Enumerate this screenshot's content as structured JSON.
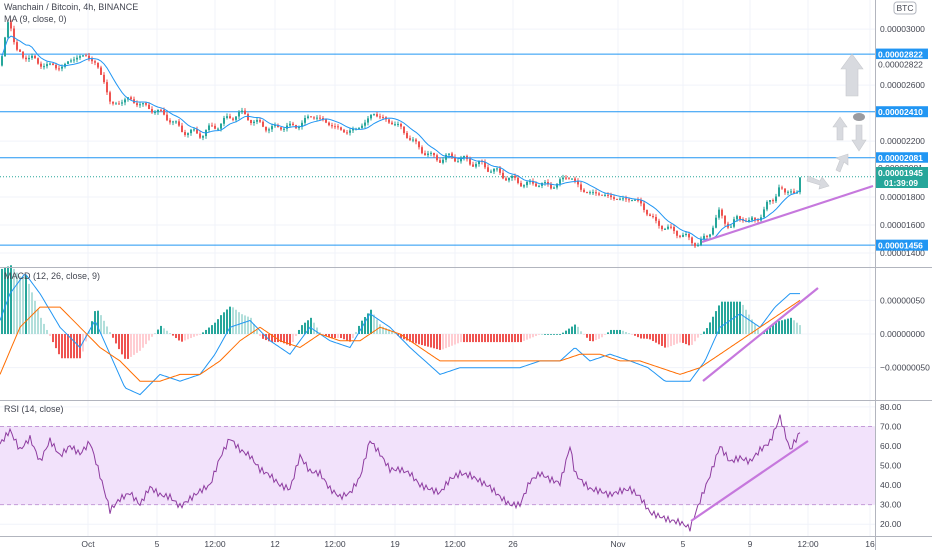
{
  "header": {
    "title": "Wanchain / Bitcoin, 4h, BINANCE",
    "ma_label": "MA (9, close, 0)",
    "currency": "BTC",
    "countdown": "01:39:09"
  },
  "colors": {
    "up": "#26a69a",
    "down": "#ef5350",
    "ma": "#2196f3",
    "hline": "#2196f3",
    "trend": "#c678dd",
    "macd": "#2196f3",
    "signal": "#ff6d00",
    "rsi": "#8e3ca0",
    "rsi_band": "#f2e2fb",
    "arrow": "#d8dadf",
    "price_tag": "#26a69a"
  },
  "chart_data": [
    {
      "type": "candlestick",
      "title": "Wanchain / Bitcoin, 4h, BINANCE",
      "ylim": [
        1.35e-05,
        3.18e-05
      ],
      "y_ticks": [
        "0.00003000",
        "0.00002600",
        "0.00002200",
        "0.00001800",
        "0.00001600",
        "0.00001400"
      ],
      "horizontal_levels": [
        {
          "value": 2.822e-05,
          "label": "0.00002822"
        },
        {
          "value": 2.41e-05,
          "label": "0.00002410"
        },
        {
          "value": 2.081e-05,
          "label": "0.00002081"
        },
        {
          "value": 1.456e-05,
          "label": "0.00001456"
        }
      ],
      "current_price": {
        "value": 1.945e-05,
        "label": "0.00001945"
      },
      "price_path": [
        [
          0,
          2.74e-05
        ],
        [
          8,
          3.1e-05
        ],
        [
          15,
          2.85e-05
        ],
        [
          22,
          2.79e-05
        ],
        [
          30,
          2.82e-05
        ],
        [
          38,
          2.73e-05
        ],
        [
          45,
          2.76e-05
        ],
        [
          55,
          2.72e-05
        ],
        [
          65,
          2.75e-05
        ],
        [
          75,
          2.8e-05
        ],
        [
          85,
          2.81e-05
        ],
        [
          95,
          2.75e-05
        ],
        [
          103,
          2.63e-05
        ],
        [
          110,
          2.45e-05
        ],
        [
          118,
          2.48e-05
        ],
        [
          128,
          2.5e-05
        ],
        [
          140,
          2.46e-05
        ],
        [
          150,
          2.43e-05
        ],
        [
          160,
          2.4e-05
        ],
        [
          170,
          2.35e-05
        ],
        [
          180,
          2.28e-05
        ],
        [
          190,
          2.26e-05
        ],
        [
          200,
          2.25e-05
        ],
        [
          210,
          2.29e-05
        ],
        [
          220,
          2.33e-05
        ],
        [
          228,
          2.36e-05
        ],
        [
          236,
          2.4e-05
        ],
        [
          245,
          2.38e-05
        ],
        [
          255,
          2.33e-05
        ],
        [
          265,
          2.3e-05
        ],
        [
          275,
          2.29e-05
        ],
        [
          285,
          2.31e-05
        ],
        [
          295,
          2.3e-05
        ],
        [
          305,
          2.36e-05
        ],
        [
          315,
          2.38e-05
        ],
        [
          325,
          2.33e-05
        ],
        [
          335,
          2.3e-05
        ],
        [
          345,
          2.26e-05
        ],
        [
          355,
          2.29e-05
        ],
        [
          365,
          2.33e-05
        ],
        [
          372,
          2.41e-05
        ],
        [
          380,
          2.36e-05
        ],
        [
          390,
          2.34e-05
        ],
        [
          400,
          2.29e-05
        ],
        [
          410,
          2.21e-05
        ],
        [
          420,
          2.14e-05
        ],
        [
          430,
          2.09e-05
        ],
        [
          440,
          2.07e-05
        ],
        [
          450,
          2.09e-05
        ],
        [
          460,
          2.07e-05
        ],
        [
          470,
          2.05e-05
        ],
        [
          480,
          2.03e-05
        ],
        [
          490,
          2e-05
        ],
        [
          500,
          1.96e-05
        ],
        [
          510,
          1.93e-05
        ],
        [
          520,
          1.9e-05
        ],
        [
          530,
          1.89e-05
        ],
        [
          540,
          1.9e-05
        ],
        [
          550,
          1.87e-05
        ],
        [
          560,
          1.92e-05
        ],
        [
          570,
          1.95e-05
        ],
        [
          575,
          1.9e-05
        ],
        [
          580,
          1.85e-05
        ],
        [
          590,
          1.83e-05
        ],
        [
          600,
          1.82e-05
        ],
        [
          610,
          1.8e-05
        ],
        [
          620,
          1.78e-05
        ],
        [
          630,
          1.79e-05
        ],
        [
          640,
          1.75e-05
        ],
        [
          648,
          1.67e-05
        ],
        [
          656,
          1.61e-05
        ],
        [
          664,
          1.58e-05
        ],
        [
          672,
          1.56e-05
        ],
        [
          680,
          1.53e-05
        ],
        [
          690,
          1.49e-05
        ],
        [
          698,
          1.46e-05
        ],
        [
          706,
          1.52e-05
        ],
        [
          712,
          1.6e-05
        ],
        [
          718,
          1.68e-05
        ],
        [
          724,
          1.63e-05
        ],
        [
          730,
          1.59e-05
        ],
        [
          736,
          1.64e-05
        ],
        [
          742,
          1.66e-05
        ],
        [
          748,
          1.62e-05
        ],
        [
          754,
          1.63e-05
        ],
        [
          760,
          1.68e-05
        ],
        [
          766,
          1.74e-05
        ],
        [
          772,
          1.78e-05
        ],
        [
          778,
          1.88e-05
        ],
        [
          784,
          1.81e-05
        ],
        [
          790,
          1.86e-05
        ],
        [
          796,
          1.83e-05
        ],
        [
          800,
          1.95e-05
        ]
      ],
      "x_ticks": [
        {
          "label": "Oct",
          "x": 88
        },
        {
          "label": "5",
          "x": 157
        },
        {
          "label": "12:00",
          "x": 215
        },
        {
          "label": "12",
          "x": 275
        },
        {
          "label": "12:00",
          "x": 335
        },
        {
          "label": "19",
          "x": 395
        },
        {
          "label": "12:00",
          "x": 455
        },
        {
          "label": "26",
          "x": 513
        },
        {
          "label": "Nov",
          "x": 618
        },
        {
          "label": "5",
          "x": 683
        },
        {
          "label": "9",
          "x": 750
        },
        {
          "label": "12:00",
          "x": 808
        },
        {
          "label": "16",
          "x": 870
        }
      ]
    },
    {
      "type": "line",
      "title": "MACD (12, 26, close, 9)",
      "ylim": [
        -9.5e-07,
        9.5e-07
      ],
      "y_ticks": [
        {
          "label": "0.00000050",
          "value": 5e-07
        },
        {
          "label": "0.00000000",
          "value": 0
        },
        {
          "label": "−0.00000050",
          "value": -5e-07
        }
      ],
      "series": [
        {
          "name": "MACD",
          "points": [
            [
              0,
              2e-07
            ],
            [
              10,
              6e-07
            ],
            [
              25,
              9e-07
            ],
            [
              40,
              6e-07
            ],
            [
              60,
              1e-07
            ],
            [
              80,
              -2e-07
            ],
            [
              95,
              2e-07
            ],
            [
              110,
              -3e-07
            ],
            [
              125,
              -8e-07
            ],
            [
              140,
              -9e-07
            ],
            [
              160,
              -6e-07
            ],
            [
              180,
              -7e-07
            ],
            [
              200,
              -6e-07
            ],
            [
              215,
              -3e-07
            ],
            [
              230,
              1e-07
            ],
            [
              250,
              2e-07
            ],
            [
              270,
              -1e-07
            ],
            [
              290,
              -3e-07
            ],
            [
              310,
              1e-07
            ],
            [
              330,
              -1e-07
            ],
            [
              350,
              -2e-07
            ],
            [
              370,
              3e-07
            ],
            [
              390,
              1e-07
            ],
            [
              410,
              -2e-07
            ],
            [
              425,
              -4e-07
            ],
            [
              440,
              -6e-07
            ],
            [
              460,
              -5e-07
            ],
            [
              480,
              -5e-07
            ],
            [
              500,
              -5e-07
            ],
            [
              520,
              -5e-07
            ],
            [
              540,
              -4e-07
            ],
            [
              560,
              -4e-07
            ],
            [
              575,
              -2e-07
            ],
            [
              590,
              -4e-07
            ],
            [
              610,
              -3e-07
            ],
            [
              630,
              -4e-07
            ],
            [
              648,
              -5e-07
            ],
            [
              665,
              -7e-07
            ],
            [
              690,
              -7e-07
            ],
            [
              705,
              -4e-07
            ],
            [
              720,
              1e-07
            ],
            [
              740,
              3e-07
            ],
            [
              760,
              1e-07
            ],
            [
              775,
              4e-07
            ],
            [
              790,
              6e-07
            ],
            [
              800,
              6e-07
            ]
          ]
        },
        {
          "name": "Signal",
          "points": [
            [
              0,
              -6e-07
            ],
            [
              20,
              1e-07
            ],
            [
              40,
              4e-07
            ],
            [
              60,
              4e-07
            ],
            [
              80,
              1e-07
            ],
            [
              100,
              -2e-07
            ],
            [
              120,
              -4e-07
            ],
            [
              140,
              -7e-07
            ],
            [
              160,
              -7e-07
            ],
            [
              180,
              -6e-07
            ],
            [
              200,
              -6e-07
            ],
            [
              220,
              -4e-07
            ],
            [
              240,
              -1e-07
            ],
            [
              260,
              1e-07
            ],
            [
              280,
              -1e-07
            ],
            [
              300,
              -2e-07
            ],
            [
              320,
              0.0
            ],
            [
              340,
              -1e-07
            ],
            [
              360,
              -1e-07
            ],
            [
              380,
              1e-07
            ],
            [
              400,
              0.0
            ],
            [
              420,
              -2e-07
            ],
            [
              440,
              -4e-07
            ],
            [
              460,
              -4e-07
            ],
            [
              480,
              -4e-07
            ],
            [
              500,
              -4e-07
            ],
            [
              520,
              -4e-07
            ],
            [
              540,
              -4e-07
            ],
            [
              560,
              -4e-07
            ],
            [
              580,
              -3e-07
            ],
            [
              600,
              -3e-07
            ],
            [
              620,
              -4e-07
            ],
            [
              640,
              -4e-07
            ],
            [
              660,
              -5e-07
            ],
            [
              680,
              -6e-07
            ],
            [
              700,
              -5e-07
            ],
            [
              720,
              -3e-07
            ],
            [
              740,
              -1e-07
            ],
            [
              760,
              1e-07
            ],
            [
              780,
              3e-07
            ],
            [
              800,
              5e-07
            ]
          ]
        }
      ]
    },
    {
      "type": "line",
      "title": "RSI (14, close)",
      "ylim": [
        15,
        82
      ],
      "band": [
        30,
        70
      ],
      "y_ticks": [
        {
          "label": "80.00",
          "value": 80
        },
        {
          "label": "70.00",
          "value": 70
        },
        {
          "label": "60.00",
          "value": 60
        },
        {
          "label": "50.00",
          "value": 50
        },
        {
          "label": "40.00",
          "value": 40
        },
        {
          "label": "30.00",
          "value": 30
        },
        {
          "label": "20.00",
          "value": 20
        }
      ],
      "series": [
        {
          "name": "RSI",
          "points": [
            [
              0,
              61
            ],
            [
              10,
              68
            ],
            [
              20,
              58
            ],
            [
              30,
              64
            ],
            [
              40,
              52
            ],
            [
              50,
              63
            ],
            [
              60,
              55
            ],
            [
              70,
              60
            ],
            [
              80,
              56
            ],
            [
              90,
              62
            ],
            [
              100,
              45
            ],
            [
              110,
              27
            ],
            [
              120,
              33
            ],
            [
              130,
              36
            ],
            [
              140,
              30
            ],
            [
              150,
              39
            ],
            [
              160,
              35
            ],
            [
              170,
              34
            ],
            [
              180,
              29
            ],
            [
              190,
              33
            ],
            [
              200,
              37
            ],
            [
              210,
              40
            ],
            [
              220,
              54
            ],
            [
              230,
              64
            ],
            [
              240,
              58
            ],
            [
              250,
              55
            ],
            [
              260,
              48
            ],
            [
              270,
              45
            ],
            [
              280,
              40
            ],
            [
              290,
              38
            ],
            [
              300,
              55
            ],
            [
              310,
              47
            ],
            [
              320,
              46
            ],
            [
              330,
              38
            ],
            [
              340,
              34
            ],
            [
              350,
              36
            ],
            [
              360,
              44
            ],
            [
              370,
              63
            ],
            [
              380,
              56
            ],
            [
              390,
              48
            ],
            [
              400,
              48
            ],
            [
              410,
              46
            ],
            [
              420,
              40
            ],
            [
              430,
              38
            ],
            [
              440,
              36
            ],
            [
              450,
              43
            ],
            [
              460,
              46
            ],
            [
              470,
              45
            ],
            [
              480,
              42
            ],
            [
              490,
              39
            ],
            [
              500,
              34
            ],
            [
              510,
              30
            ],
            [
              520,
              30
            ],
            [
              530,
              42
            ],
            [
              540,
              46
            ],
            [
              550,
              43
            ],
            [
              560,
              41
            ],
            [
              565,
              50
            ],
            [
              570,
              60
            ],
            [
              575,
              46
            ],
            [
              580,
              43
            ],
            [
              590,
              38
            ],
            [
              600,
              37
            ],
            [
              610,
              35
            ],
            [
              620,
              37
            ],
            [
              630,
              38
            ],
            [
              640,
              34
            ],
            [
              650,
              26
            ],
            [
              660,
              24
            ],
            [
              670,
              22
            ],
            [
              680,
              21
            ],
            [
              690,
              18
            ],
            [
              700,
              32
            ],
            [
              710,
              45
            ],
            [
              720,
              60
            ],
            [
              730,
              52
            ],
            [
              740,
              54
            ],
            [
              750,
              52
            ],
            [
              760,
              58
            ],
            [
              770,
              62
            ],
            [
              780,
              75
            ],
            [
              790,
              58
            ],
            [
              800,
              67
            ]
          ]
        }
      ]
    }
  ]
}
